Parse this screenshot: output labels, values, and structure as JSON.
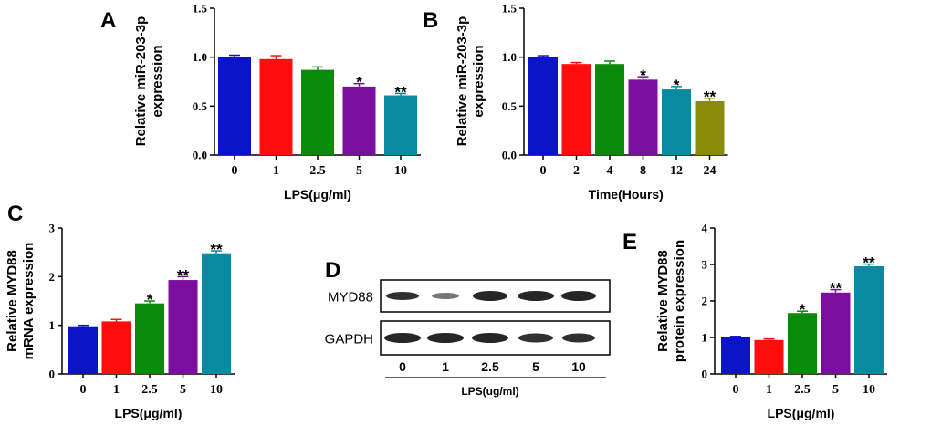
{
  "colors": [
    "#0b14c7",
    "#ff0d0d",
    "#0a8a0a",
    "#7a0f9e",
    "#0a8aa0",
    "#8b8b0a"
  ],
  "chart_data": [
    {
      "panel": "A",
      "type": "bar",
      "categories": [
        "0",
        "1",
        "2.5",
        "5",
        "10"
      ],
      "values": [
        1.0,
        0.98,
        0.87,
        0.7,
        0.61
      ],
      "errors": [
        0.02,
        0.035,
        0.03,
        0.03,
        0.02
      ],
      "sig": [
        "",
        "",
        "",
        "*",
        "**"
      ],
      "ylim": [
        0,
        1.5
      ],
      "yticks": [
        "0.0",
        "0.5",
        "1.0",
        "1.5"
      ],
      "ytick_values": [
        0,
        0.5,
        1.0,
        1.5
      ],
      "xlabel": "LPS(μg/ml)",
      "ylabel": [
        "Relative miR-203-3p",
        "expression"
      ]
    },
    {
      "panel": "B",
      "type": "bar",
      "categories": [
        "0",
        "2",
        "4",
        "8",
        "12",
        "24"
      ],
      "values": [
        1.0,
        0.93,
        0.93,
        0.77,
        0.67,
        0.55
      ],
      "errors": [
        0.015,
        0.015,
        0.03,
        0.03,
        0.03,
        0.03
      ],
      "sig": [
        "",
        "",
        "",
        "*",
        "*",
        "**"
      ],
      "ylim": [
        0,
        1.5
      ],
      "yticks": [
        "0.0",
        "0.5",
        "1.0",
        "1.5"
      ],
      "ytick_values": [
        0,
        0.5,
        1.0,
        1.5
      ],
      "xlabel": "Time(Hours)",
      "ylabel": [
        "Relative miR-203-3p",
        "expression"
      ]
    },
    {
      "panel": "C",
      "type": "bar",
      "categories": [
        "0",
        "1",
        "2.5",
        "5",
        "10"
      ],
      "values": [
        0.98,
        1.08,
        1.45,
        1.93,
        2.48
      ],
      "errors": [
        0.02,
        0.04,
        0.05,
        0.07,
        0.05
      ],
      "sig": [
        "",
        "",
        "*",
        "**",
        "**"
      ],
      "ylim": [
        0,
        3
      ],
      "yticks": [
        "0",
        "1",
        "2",
        "3"
      ],
      "ytick_values": [
        0,
        1,
        2,
        3
      ],
      "xlabel": "LPS(μg/ml)",
      "ylabel": [
        "Relative MYD88",
        "mRNA expression"
      ]
    },
    {
      "panel": "E",
      "type": "bar",
      "categories": [
        "0",
        "1",
        "2.5",
        "5",
        "10"
      ],
      "values": [
        1.0,
        0.93,
        1.67,
        2.23,
        2.95
      ],
      "errors": [
        0.03,
        0.03,
        0.05,
        0.08,
        0.06
      ],
      "sig": [
        "",
        "",
        "*",
        "**",
        "**"
      ],
      "ylim": [
        0,
        4
      ],
      "yticks": [
        "0",
        "1",
        "2",
        "3",
        "4"
      ],
      "ytick_values": [
        0,
        1,
        2,
        3,
        4
      ],
      "xlabel": "LPS(μg/ml)",
      "ylabel": [
        "Relative MYD88",
        "protein expression"
      ]
    }
  ],
  "blot": {
    "panel": "D",
    "rows": [
      "MYD88",
      "GAPDH"
    ],
    "lanes": [
      "0",
      "1",
      "2.5",
      "5",
      "10"
    ],
    "xlabel": "LPS(ug/ml)"
  }
}
